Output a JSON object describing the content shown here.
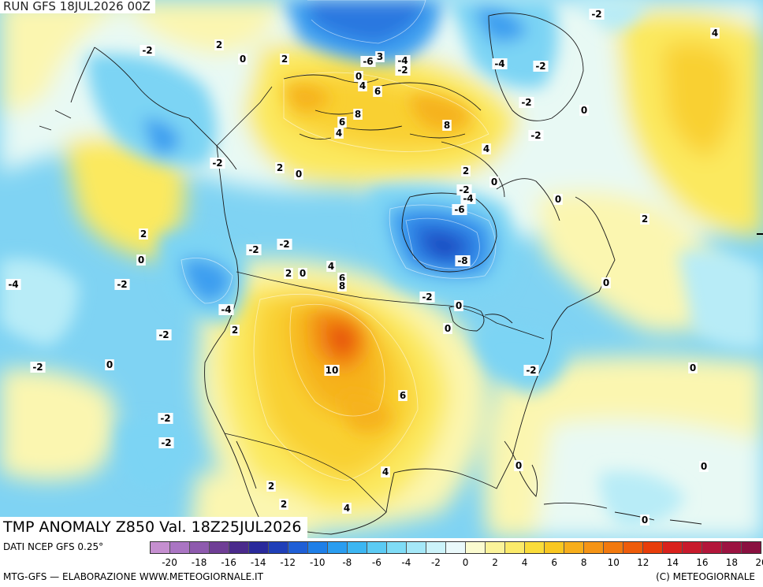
{
  "header": {
    "run_label": "RUN GFS 18JUL2026 00Z"
  },
  "title": {
    "text": "TMP ANOMALY Z850 Val. 18Z25JUL2026"
  },
  "footer": {
    "data_source": "DATI NCEP GFS 0.25°",
    "credit_left": "MTG-GFS — ELABORAZIONE WWW.METEOGIORNALE.IT",
    "credit_right": "(C) METEOGIORNALE"
  },
  "legend": {
    "colors": [
      "#c58fd0",
      "#aa75c3",
      "#8e5aae",
      "#6f3e96",
      "#4a2a8c",
      "#2a2a9c",
      "#1f3fb8",
      "#1f5fd6",
      "#1e7fe8",
      "#2a9df0",
      "#3cb6f2",
      "#5ccbf4",
      "#7fdcf6",
      "#a5e8f8",
      "#ccf3fa",
      "#eaf9fb",
      "#fbfbd0",
      "#fbf39a",
      "#fbea6a",
      "#fadc3a",
      "#f9c721",
      "#f7ae1b",
      "#f59415",
      "#f2790e",
      "#ee5c0a",
      "#e83d0a",
      "#d9211c",
      "#c81a2c",
      "#b3163a",
      "#9c1341",
      "#8a1040"
    ],
    "ticks": [
      "-20",
      "-18",
      "-16",
      "-14",
      "-12",
      "-10",
      "-8",
      "-6",
      "-4",
      "-2",
      "0",
      "2",
      "4",
      "6",
      "8",
      "10",
      "12",
      "14",
      "16",
      "18",
      "20"
    ]
  },
  "palette": {
    "c_m8": "#1a4fc4",
    "c_m6": "#2a78e0",
    "c_m4": "#3d9ff0",
    "c_m2": "#7cd4f4",
    "c_m1": "#b8ecf7",
    "c_0": "#e8f9f4",
    "c_p1": "#fbf6b0",
    "c_p2": "#fbe95e",
    "c_p4": "#f9d033",
    "c_p6": "#f6b21e",
    "c_p8": "#f28a12",
    "c_p10": "#e8560c",
    "c_p12": "#d92b12"
  },
  "contour_labels": [
    {
      "text": "-2"
    },
    {
      "text": "2"
    },
    {
      "text": "0"
    },
    {
      "text": "2"
    },
    {
      "text": "-6"
    },
    {
      "text": "3"
    },
    {
      "text": "-4"
    },
    {
      "text": "-2"
    },
    {
      "text": "0"
    },
    {
      "text": "4"
    },
    {
      "text": "6"
    },
    {
      "text": "-4"
    },
    {
      "text": "-2"
    },
    {
      "text": "-2"
    },
    {
      "text": "-2"
    },
    {
      "text": "0"
    },
    {
      "text": "4"
    },
    {
      "text": "8"
    },
    {
      "text": "6"
    },
    {
      "text": "4"
    },
    {
      "text": "8"
    },
    {
      "text": "-2"
    },
    {
      "text": "4"
    },
    {
      "text": "-2"
    },
    {
      "text": "2"
    },
    {
      "text": "0"
    },
    {
      "text": "2"
    },
    {
      "text": "0"
    },
    {
      "text": "-2"
    },
    {
      "text": "-4"
    },
    {
      "text": "-6"
    },
    {
      "text": "0"
    },
    {
      "text": "2"
    },
    {
      "text": "2"
    },
    {
      "text": "0"
    },
    {
      "text": "-2"
    },
    {
      "text": "-2"
    },
    {
      "text": "4"
    },
    {
      "text": "-8"
    },
    {
      "text": "2"
    },
    {
      "text": "0"
    },
    {
      "text": "6"
    },
    {
      "text": "8"
    },
    {
      "text": "-4"
    },
    {
      "text": "-2"
    },
    {
      "text": "0"
    },
    {
      "text": "0"
    },
    {
      "text": "-2"
    },
    {
      "text": "-4"
    },
    {
      "text": "-2"
    },
    {
      "text": "2"
    },
    {
      "text": "0"
    },
    {
      "text": "-2"
    },
    {
      "text": "10"
    },
    {
      "text": "-2"
    },
    {
      "text": "0"
    },
    {
      "text": "6"
    },
    {
      "text": "-2"
    },
    {
      "text": "-2"
    },
    {
      "text": "0"
    },
    {
      "text": "0"
    },
    {
      "text": "4"
    },
    {
      "text": "2"
    },
    {
      "text": "0"
    },
    {
      "text": "4"
    },
    {
      "text": "2"
    },
    {
      "text": "0"
    }
  ]
}
